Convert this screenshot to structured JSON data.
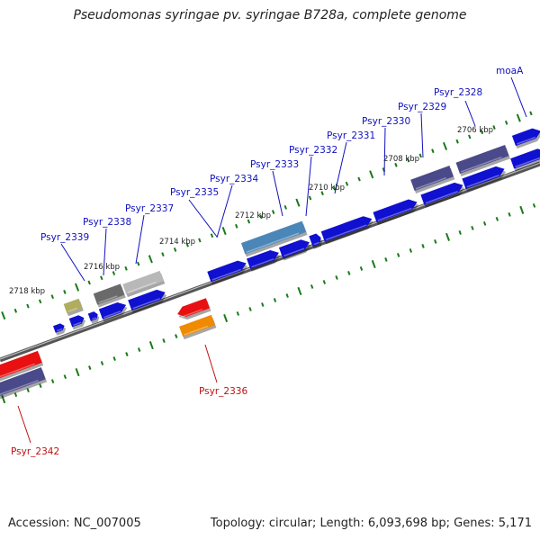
{
  "title": "Pseudomonas syringae pv. syringae B728a, complete genome",
  "footer": {
    "accession": "Accession: NC_007005",
    "summary": "Topology: circular; Length: 6,093,698 bp; Genes: 5,171"
  },
  "colors": {
    "cds_forward": "#1010d0",
    "cds_slate": "#4a4a8a",
    "rna_red": "#e81010",
    "orange": "#f08a00",
    "olive": "#b0ac60",
    "grey_dark": "#6a6a6a",
    "grey_light": "#b8b8b8",
    "steel": "#4a86b8",
    "tick_green": "#1a7a1a",
    "label_blue": "#1010c0",
    "label_red": "#c01010"
  },
  "tick_labels": [
    "2718 kbp",
    "2716 kbp",
    "2714 kbp",
    "2712 kbp",
    "2710 kbp",
    "2708 kbp",
    "2706 kbp"
  ],
  "gene_labels": {
    "psyr_2328": "Psyr_2328",
    "psyr_2329": "Psyr_2329",
    "psyr_2330": "Psyr_2330",
    "psyr_2331": "Psyr_2331",
    "psyr_2332": "Psyr_2332",
    "psyr_2333": "Psyr_2333",
    "psyr_2334": "Psyr_2334",
    "psyr_2335": "Psyr_2335",
    "psyr_2337": "Psyr_2337",
    "psyr_2338": "Psyr_2338",
    "psyr_2339": "Psyr_2339",
    "psyr_2336": "Psyr_2336",
    "psyr_2342": "Psyr_2342",
    "moaA": "moaA"
  }
}
